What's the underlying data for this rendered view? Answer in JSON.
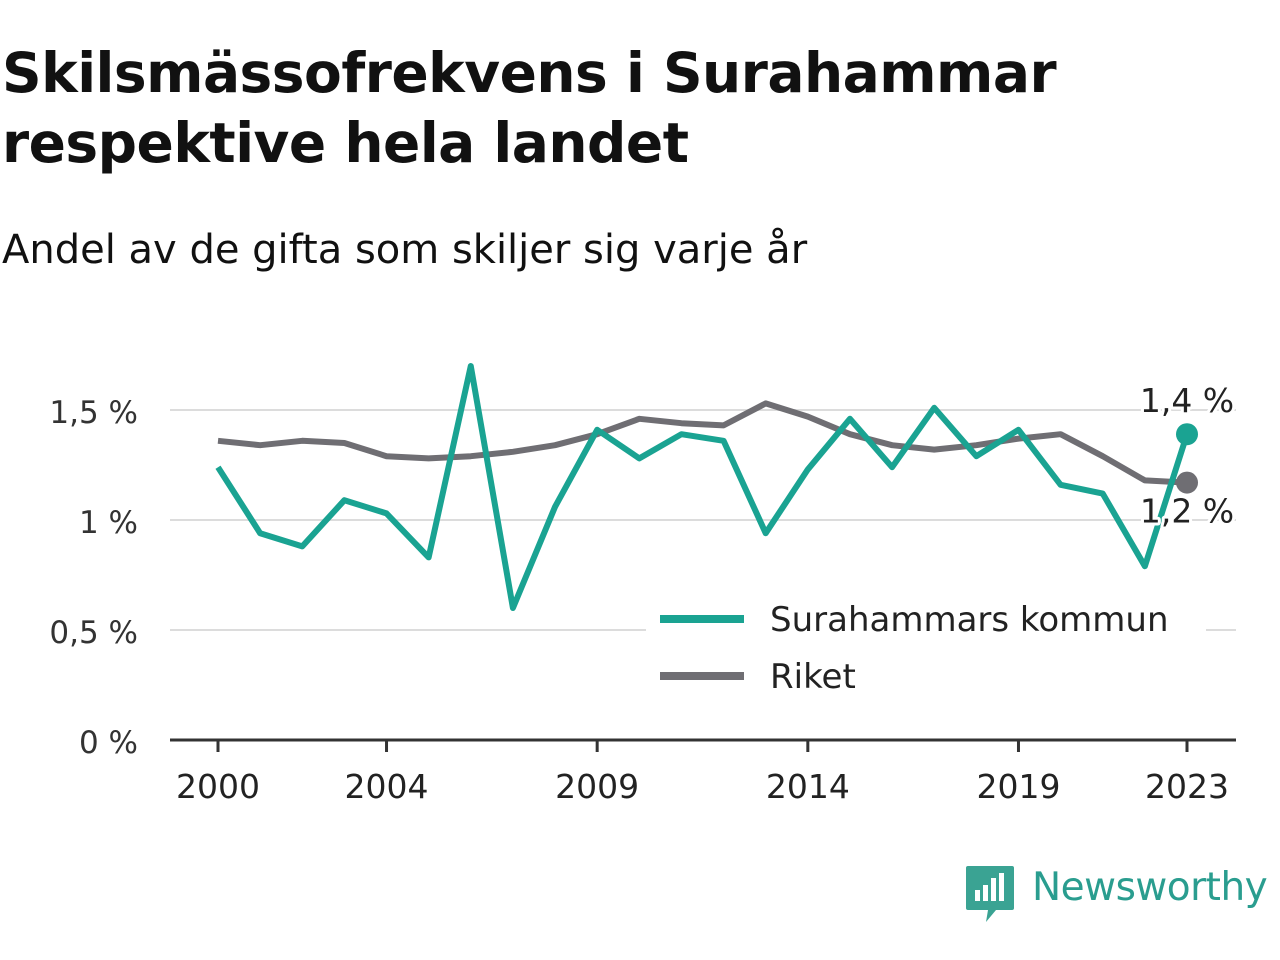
{
  "title": "Skilsmässofrekvens i Surahammar respektive hela landet",
  "subtitle": "Andel av de gifta som skiljer sig varje år",
  "brand": {
    "name": "Newsworthy",
    "color": "#2a9d8f",
    "icon": "newsworthy-logo-icon"
  },
  "chart_data": {
    "type": "line",
    "x": [
      2000,
      2001,
      2002,
      2003,
      2004,
      2005,
      2006,
      2007,
      2008,
      2009,
      2010,
      2011,
      2012,
      2013,
      2014,
      2015,
      2016,
      2017,
      2018,
      2019,
      2020,
      2021,
      2022,
      2023
    ],
    "x_ticks": [
      2000,
      2004,
      2009,
      2014,
      2019,
      2023
    ],
    "x_tick_labels": [
      "2000",
      "2004",
      "2009",
      "2014",
      "2019",
      "2023"
    ],
    "ylim": [
      0,
      1.6
    ],
    "y_ticks": [
      0,
      0.5,
      1,
      1.5
    ],
    "y_tick_labels": [
      "0 %",
      "0,5 %",
      "1 %",
      "1,5 %"
    ],
    "grid": true,
    "legend_position": "bottom-right",
    "series": [
      {
        "name": "Surahammars kommun",
        "color": "#1aa392",
        "values": [
          1.24,
          0.94,
          0.88,
          1.09,
          1.03,
          0.83,
          1.7,
          0.6,
          1.06,
          1.41,
          1.28,
          1.39,
          1.36,
          0.94,
          1.23,
          1.46,
          1.24,
          1.51,
          1.29,
          1.41,
          1.16,
          1.12,
          0.79,
          1.39
        ],
        "end_label": "1,4 %"
      },
      {
        "name": "Riket",
        "color": "#6f6e73",
        "values": [
          1.36,
          1.34,
          1.36,
          1.35,
          1.29,
          1.28,
          1.29,
          1.31,
          1.34,
          1.39,
          1.46,
          1.44,
          1.43,
          1.53,
          1.47,
          1.39,
          1.34,
          1.32,
          1.34,
          1.37,
          1.39,
          1.29,
          1.18,
          1.17
        ],
        "end_label": "1,2 %"
      }
    ]
  }
}
